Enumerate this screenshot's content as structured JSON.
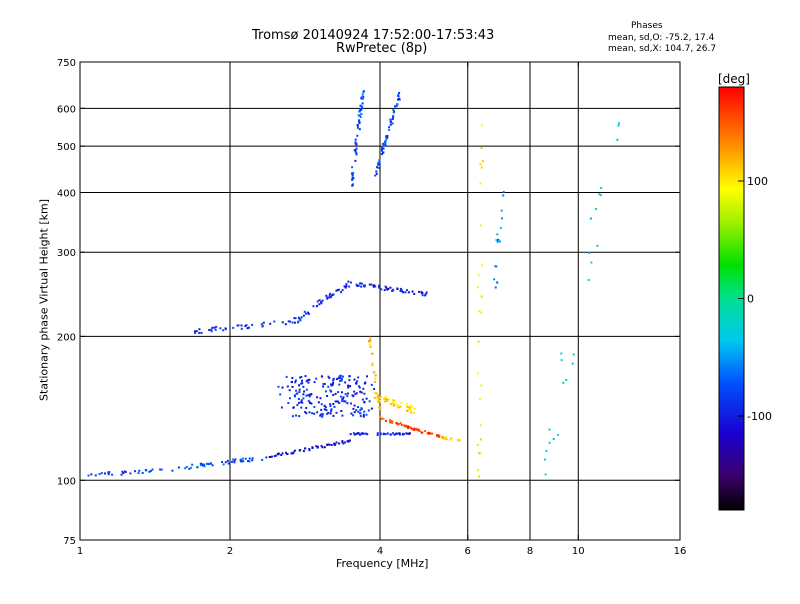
{
  "header": {
    "title": "Tromsø 20140924 17:52:00-17:53:43",
    "subtitle": "RwPretec (8p)"
  },
  "phases_box": {
    "heading": "Phases",
    "o_stats": "mean, sd,O: -75.2, 17.4",
    "x_stats": "mean, sd,X: 104.7, 26.7"
  },
  "colorbar": {
    "label": "[deg]",
    "range": [
      -180,
      180
    ],
    "ticks": [
      {
        "value": 100,
        "label": "100"
      },
      {
        "value": 0,
        "label": "0"
      },
      {
        "value": -100,
        "label": "-100"
      }
    ]
  },
  "chart_data": {
    "type": "scatter",
    "title": "Tromsø 20140924 17:52:00-17:53:43",
    "subtitle": "RwPretec (8p)",
    "xlabel": "Frequency [MHz]",
    "ylabel": "Stationary phase Virtual Height [km]",
    "x_scale": "log",
    "y_scale": "log",
    "xlim": [
      1,
      16
    ],
    "ylim": [
      75,
      750
    ],
    "xticks": [
      {
        "value": 1,
        "label": "1"
      },
      {
        "value": 2,
        "label": "2"
      },
      {
        "value": 4,
        "label": "4"
      },
      {
        "value": 6,
        "label": "6"
      },
      {
        "value": 8,
        "label": "8"
      },
      {
        "value": 10,
        "label": "10"
      },
      {
        "value": 16,
        "label": "16"
      }
    ],
    "yticks": [
      {
        "value": 75,
        "label": "75"
      },
      {
        "value": 100,
        "label": "100"
      },
      {
        "value": 200,
        "label": "200"
      },
      {
        "value": 300,
        "label": "300"
      },
      {
        "value": 400,
        "label": "400"
      },
      {
        "value": 500,
        "label": "500"
      },
      {
        "value": 600,
        "label": "600"
      },
      {
        "value": 750,
        "label": "750"
      }
    ],
    "grid": true,
    "xgrid": [
      2,
      4,
      6,
      8,
      10
    ],
    "ygrid": [
      100,
      200,
      300,
      400,
      500,
      600
    ],
    "color_by": "phase [deg]",
    "traces": [
      {
        "from": [
          1.0,
          102
        ],
        "to": [
          1.6,
          106
        ],
        "phase": -85,
        "n": 30,
        "spread": 0.008
      },
      {
        "from": [
          1.6,
          106
        ],
        "to": [
          2.4,
          112
        ],
        "phase": -80,
        "n": 45,
        "spread": 0.01
      },
      {
        "from": [
          2.4,
          112
        ],
        "to": [
          3.5,
          121
        ],
        "phase": -110,
        "n": 55,
        "spread": 0.006
      },
      {
        "from": [
          3.4,
          125
        ],
        "to": [
          4.6,
          125
        ],
        "phase": -100,
        "n": 40,
        "spread": 0.004
      },
      {
        "from": [
          1.7,
          205
        ],
        "to": [
          2.7,
          215
        ],
        "phase": -85,
        "n": 40,
        "spread": 0.01
      },
      {
        "from": [
          2.7,
          215
        ],
        "to": [
          3.5,
          260
        ],
        "phase": -95,
        "n": 45,
        "spread": 0.015
      },
      {
        "from": [
          3.5,
          258
        ],
        "to": [
          5.0,
          245
        ],
        "phase": -100,
        "n": 50,
        "spread": 0.008
      },
      {
        "from": [
          3.5,
          410
        ],
        "to": [
          3.7,
          650
        ],
        "phase": -80,
        "n": 60,
        "spread": 0.012
      },
      {
        "from": [
          3.9,
          430
        ],
        "to": [
          4.4,
          650
        ],
        "phase": -80,
        "n": 60,
        "spread": 0.012
      },
      {
        "from": [
          2.6,
          150
        ],
        "to": [
          3.8,
          150
        ],
        "phase": -95,
        "n": 200,
        "spread": 0.09
      },
      {
        "from": [
          3.8,
          200
        ],
        "to": [
          4.0,
          140
        ],
        "phase": 120,
        "n": 30,
        "spread": 0.01
      },
      {
        "from": [
          3.9,
          150
        ],
        "to": [
          4.7,
          140
        ],
        "phase": 110,
        "n": 40,
        "spread": 0.015
      },
      {
        "from": [
          4.0,
          135
        ],
        "to": [
          5.3,
          123
        ],
        "phase": 160,
        "n": 60,
        "spread": 0.006
      },
      {
        "from": [
          5.3,
          123
        ],
        "to": [
          5.8,
          121
        ],
        "phase": 115,
        "n": 15,
        "spread": 0.004
      },
      {
        "from": [
          6.3,
          90
        ],
        "to": [
          6.4,
          620
        ],
        "phase": 100,
        "n": 25,
        "spread": 0.02
      },
      {
        "from": [
          6.8,
          250
        ],
        "to": [
          7.1,
          450
        ],
        "phase": -60,
        "n": 15,
        "spread": 0.02
      },
      {
        "from": [
          8.5,
          100
        ],
        "to": [
          12,
          600
        ],
        "phase": -30,
        "n": 25,
        "spread": 0.06
      }
    ]
  }
}
